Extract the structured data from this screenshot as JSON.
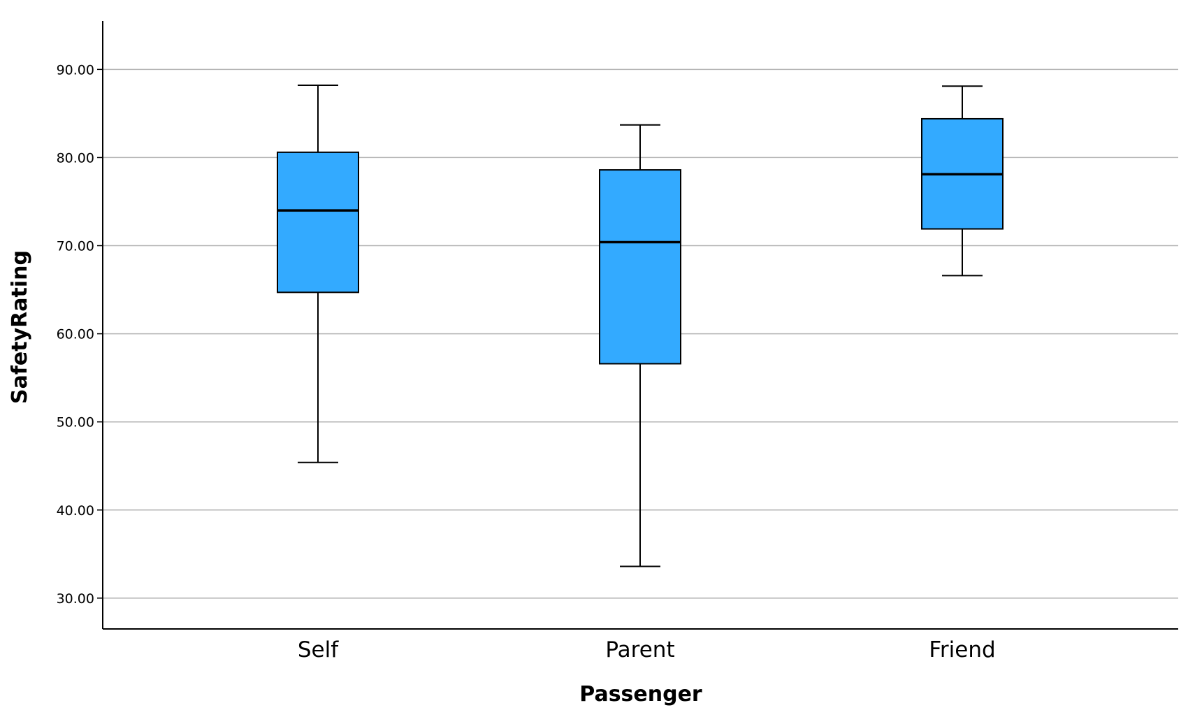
{
  "chart_data": {
    "type": "boxplot",
    "title": "",
    "xlabel": "Passenger",
    "ylabel": "SafetyRating",
    "ylim": [
      26.5,
      95.5
    ],
    "yticks": [
      30,
      40,
      50,
      60,
      70,
      80,
      90
    ],
    "ytick_labels": [
      "30.00",
      "40.00",
      "50.00",
      "60.00",
      "70.00",
      "80.00",
      "90.00"
    ],
    "grid": true,
    "categories": [
      "Self",
      "Parent",
      "Friend"
    ],
    "box_color": "#33aaff",
    "boxes": [
      {
        "category": "Self",
        "min": 45.4,
        "q1": 64.7,
        "median": 74.0,
        "q3": 80.6,
        "max": 88.2
      },
      {
        "category": "Parent",
        "min": 33.6,
        "q1": 56.6,
        "median": 70.4,
        "q3": 78.6,
        "max": 83.7
      },
      {
        "category": "Friend",
        "min": 66.6,
        "q1": 71.9,
        "median": 78.1,
        "q3": 84.4,
        "max": 88.1
      }
    ]
  }
}
